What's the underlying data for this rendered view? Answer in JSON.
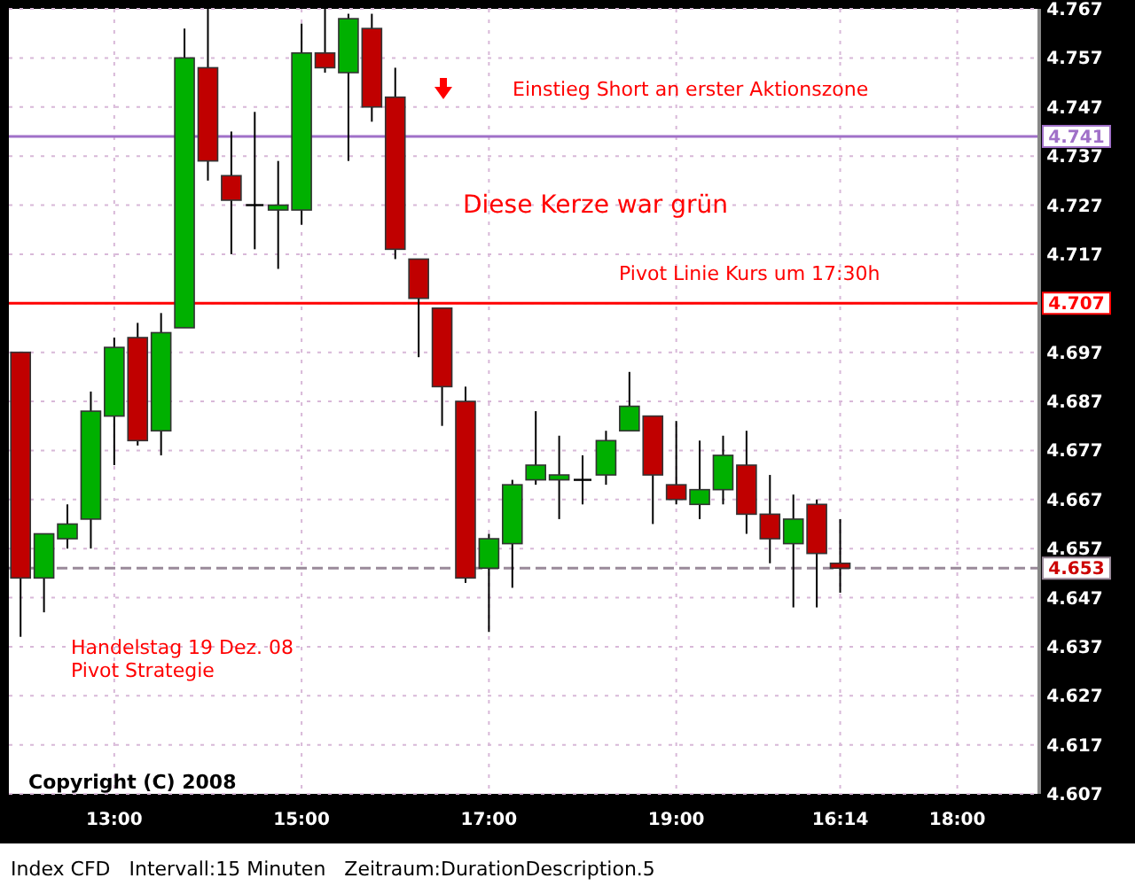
{
  "chart_data": {
    "type": "candlestick",
    "categories": [
      null,
      null,
      null,
      null,
      "13:00",
      null,
      null,
      null,
      null,
      null,
      null,
      null,
      "15:00",
      null,
      null,
      null,
      null,
      null,
      null,
      null,
      "17:00",
      null,
      null,
      null,
      null,
      null,
      null,
      null,
      "19:00",
      null,
      null,
      null,
      null,
      null,
      null,
      "16:14",
      null,
      null,
      null,
      null,
      "18:00",
      null,
      null,
      null
    ],
    "ohlc": [
      [
        4.697,
        4.697,
        4.639,
        4.651
      ],
      [
        4.651,
        4.66,
        4.644,
        4.66
      ],
      [
        4.659,
        4.666,
        4.657,
        4.662
      ],
      [
        4.663,
        4.689,
        4.657,
        4.685
      ],
      [
        4.684,
        4.7,
        4.674,
        4.698
      ],
      [
        4.7,
        4.703,
        4.678,
        4.679
      ],
      [
        4.681,
        4.705,
        4.676,
        4.701
      ],
      [
        4.702,
        4.763,
        4.702,
        4.757
      ],
      [
        4.755,
        4.767,
        4.732,
        4.736
      ],
      [
        4.733,
        4.742,
        4.717,
        4.728
      ],
      [
        4.727,
        4.746,
        4.718,
        4.727
      ],
      [
        4.726,
        4.736,
        4.714,
        4.727
      ],
      [
        4.726,
        4.764,
        4.723,
        4.758
      ],
      [
        4.758,
        4.767,
        4.754,
        4.755
      ],
      [
        4.754,
        4.766,
        4.736,
        4.765
      ],
      [
        4.763,
        4.766,
        4.744,
        4.747
      ],
      [
        4.749,
        4.755,
        4.716,
        4.718
      ],
      [
        4.716,
        4.716,
        4.696,
        4.708
      ],
      [
        4.706,
        4.706,
        4.682,
        4.69
      ],
      [
        4.687,
        4.69,
        4.65,
        4.651
      ],
      [
        4.653,
        4.66,
        4.64,
        4.659
      ],
      [
        4.658,
        4.671,
        4.649,
        4.67
      ],
      [
        4.671,
        4.685,
        4.67,
        4.674
      ],
      [
        4.671,
        4.68,
        4.663,
        4.672
      ],
      [
        4.671,
        4.676,
        4.666,
        4.671
      ],
      [
        4.672,
        4.681,
        4.67,
        4.679
      ],
      [
        4.681,
        4.693,
        4.681,
        4.686
      ],
      [
        4.684,
        4.684,
        4.662,
        4.672
      ],
      [
        4.67,
        4.683,
        4.666,
        4.667
      ],
      [
        4.666,
        4.679,
        4.663,
        4.669
      ],
      [
        4.669,
        4.68,
        4.666,
        4.676
      ],
      [
        4.674,
        4.681,
        4.66,
        4.664
      ],
      [
        4.664,
        4.672,
        4.654,
        4.659
      ],
      [
        4.658,
        4.668,
        4.645,
        4.663
      ],
      [
        4.666,
        4.667,
        4.645,
        4.656
      ],
      [
        4.654,
        4.663,
        4.648,
        4.653
      ],
      null,
      null,
      null,
      null,
      null,
      null,
      null,
      null
    ],
    "colors": [
      "#c00000",
      "#00b000",
      "#00b000",
      "#00b000",
      "#00b000",
      "#c00000",
      "#00b000",
      "#00b000",
      "#c00000",
      "#c00000",
      "#000000",
      "#00b000",
      "#00b000",
      "#c00000",
      "#00b000",
      "#c00000",
      "#c00000",
      "#c00000",
      "#c00000",
      "#c00000",
      "#00b000",
      "#00b000",
      "#00b000",
      "#00b000",
      "#000000",
      "#00b000",
      "#00b000",
      "#c00000",
      "#c00000",
      "#00b000",
      "#00b000",
      "#c00000",
      "#c00000",
      "#00b000",
      "#c00000",
      "#c00000",
      null,
      null,
      null,
      null,
      null,
      null,
      null,
      null
    ],
    "ylim": [
      4.607,
      4.767
    ],
    "yticks": [
      4.607,
      4.617,
      4.627,
      4.637,
      4.647,
      4.657,
      4.667,
      4.677,
      4.687,
      4.697,
      4.707,
      4.717,
      4.727,
      4.737,
      4.747,
      4.757,
      4.767
    ],
    "grid": true,
    "ref_lines": [
      {
        "axis": "y",
        "value": 4.741,
        "label": "4.741",
        "color": "#a070c8",
        "line_style": "solid"
      },
      {
        "axis": "y",
        "value": 4.707,
        "label": "4.707",
        "color": "#ff0000",
        "line_style": "solid"
      },
      {
        "axis": "y",
        "value": 4.653,
        "label": "4.653",
        "color": "#9a8a9a",
        "line_style": "dashed"
      }
    ],
    "annotations": [
      "Einstieg Short an erster Aktionszone",
      "Diese Kerze war grün",
      "Pivot Linie Kurs um 17:30h",
      "Handelstag 19 Dez. 08",
      "Pivot Strategie",
      "Copyright (C) 2008",
      "Index CFD   Intervall:15 Minuten   Zeitraum:DurationDescription.5"
    ]
  }
}
